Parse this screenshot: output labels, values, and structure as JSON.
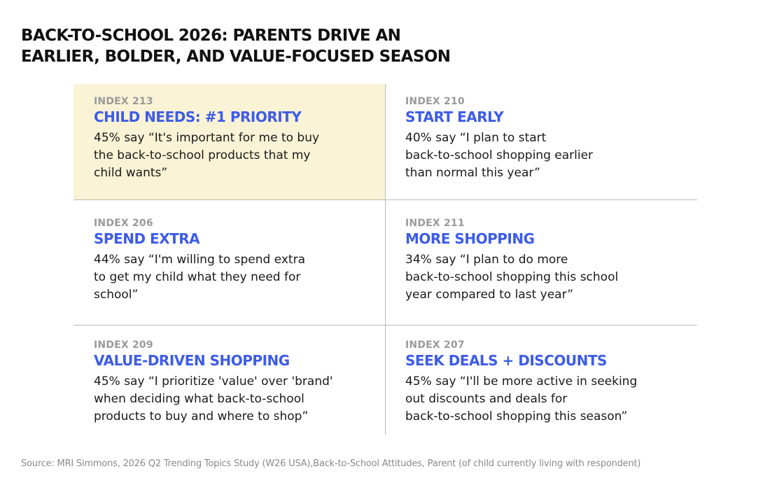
{
  "title": {
    "line1": "BACK-TO-SCHOOL 2026: PARENTS DRIVE AN",
    "line2": "EARLIER, BOLDER, AND VALUE-FOCUSED SEASON"
  },
  "colors": {
    "heading": "#3d5ce6",
    "highlight_background": "#faf3d6",
    "index_label": "#9a9a9a",
    "divider": "#b9b9b9"
  },
  "cards": [
    {
      "index": "INDEX 213",
      "heading": "CHILD NEEDS: #1 PRIORITY",
      "lines": [
        "45% say “It's important for me to buy",
        "the back-to-school products that my",
        "child wants”"
      ]
    },
    {
      "index": "INDEX 210",
      "heading": "START EARLY",
      "lines": [
        "40% say “I plan to start",
        "back-to-school shopping earlier",
        "than normal this year”"
      ]
    },
    {
      "index": "INDEX 206",
      "heading": "SPEND EXTRA",
      "lines": [
        "44% say “I'm willing to spend extra",
        "to get my child what they need for",
        "school”"
      ]
    },
    {
      "index": "INDEX 211",
      "heading": "MORE SHOPPING",
      "lines": [
        "34% say “I plan to do more",
        "back-to-school shopping this school",
        "year compared to last year”"
      ]
    },
    {
      "index": "INDEX 209",
      "heading": "VALUE-DRIVEN SHOPPING",
      "lines": [
        "45% say “I prioritize 'value' over 'brand'",
        "when deciding what back-to-school",
        "products to buy and where to shop”"
      ]
    },
    {
      "index": "INDEX 207",
      "heading": "SEEK DEALS + DISCOUNTS",
      "lines": [
        "45% say “I'll be more active in seeking",
        "out discounts and deals for",
        "back-to-school shopping this season”"
      ]
    }
  ],
  "source": "Source: MRI Simmons, 2026 Q2 Trending Topics Study (W26 USA),Back-to-School Attitudes, Parent (of child currently living with respondent)"
}
